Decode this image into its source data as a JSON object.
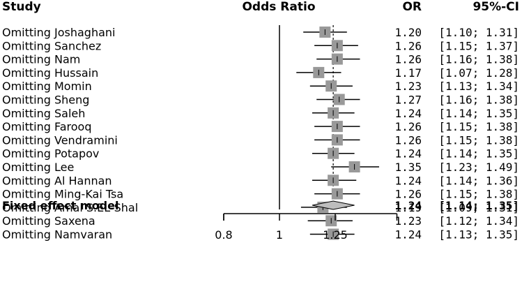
{
  "chart_data": {
    "type": "forest",
    "headers": {
      "study": "Study",
      "effect": "Odds Ratio",
      "or": "OR",
      "ci": "95%-CI"
    },
    "studies": [
      {
        "label": "Omitting Joshaghani",
        "or": 1.2,
        "lo": 1.1,
        "hi": 1.31,
        "or_text": "1.20",
        "ci_text": "[1.10; 1.31]"
      },
      {
        "label": "Omitting Sanchez",
        "or": 1.26,
        "lo": 1.15,
        "hi": 1.37,
        "or_text": "1.26",
        "ci_text": "[1.15; 1.37]"
      },
      {
        "label": "Omitting Nam",
        "or": 1.26,
        "lo": 1.16,
        "hi": 1.38,
        "or_text": "1.26",
        "ci_text": "[1.16; 1.38]"
      },
      {
        "label": "Omitting Hussain",
        "or": 1.17,
        "lo": 1.07,
        "hi": 1.28,
        "or_text": "1.17",
        "ci_text": "[1.07; 1.28]"
      },
      {
        "label": "Omitting Momin",
        "or": 1.23,
        "lo": 1.13,
        "hi": 1.34,
        "or_text": "1.23",
        "ci_text": "[1.13; 1.34]"
      },
      {
        "label": "Omitting Sheng",
        "or": 1.27,
        "lo": 1.16,
        "hi": 1.38,
        "or_text": "1.27",
        "ci_text": "[1.16; 1.38]"
      },
      {
        "label": "Omitting Saleh",
        "or": 1.24,
        "lo": 1.14,
        "hi": 1.35,
        "or_text": "1.24",
        "ci_text": "[1.14; 1.35]"
      },
      {
        "label": "Omitting Farooq",
        "or": 1.26,
        "lo": 1.15,
        "hi": 1.38,
        "or_text": "1.26",
        "ci_text": "[1.15; 1.38]"
      },
      {
        "label": "Omitting Vendramini",
        "or": 1.26,
        "lo": 1.15,
        "hi": 1.38,
        "or_text": "1.26",
        "ci_text": "[1.15; 1.38]"
      },
      {
        "label": "Omitting Potapov",
        "or": 1.24,
        "lo": 1.14,
        "hi": 1.35,
        "or_text": "1.24",
        "ci_text": "[1.14; 1.35]"
      },
      {
        "label": "Omitting Lee",
        "or": 1.35,
        "lo": 1.23,
        "hi": 1.49,
        "or_text": "1.35",
        "ci_text": "[1.23; 1.49]"
      },
      {
        "label": "Omitting Al Hannan",
        "or": 1.24,
        "lo": 1.14,
        "hi": 1.36,
        "or_text": "1.24",
        "ci_text": "[1.14; 1.36]"
      },
      {
        "label": "Omitting Ming-Kai Tsa",
        "or": 1.26,
        "lo": 1.15,
        "hi": 1.38,
        "or_text": "1.26",
        "ci_text": "[1.15; 1.38]"
      },
      {
        "label": "Omitting Amal S.EL-Shal",
        "or": 1.19,
        "lo": 1.09,
        "hi": 1.31,
        "or_text": "1.19",
        "ci_text": "[1.09; 1.31]"
      },
      {
        "label": "Omitting Saxena",
        "or": 1.23,
        "lo": 1.12,
        "hi": 1.34,
        "or_text": "1.23",
        "ci_text": "[1.12; 1.34]"
      },
      {
        "label": "Omitting Namvaran",
        "or": 1.24,
        "lo": 1.13,
        "hi": 1.35,
        "or_text": "1.24",
        "ci_text": "[1.13; 1.35]"
      }
    ],
    "summary": {
      "label": "Fixed effect model",
      "or": 1.24,
      "lo": 1.14,
      "hi": 1.35,
      "or_text": "1.24",
      "ci_text": "[1.14; 1.35]"
    },
    "x_scale": "log",
    "xlim": [
      0.8,
      1.6
    ],
    "null_line": 1,
    "x_ticks": [
      0.8,
      1,
      1.25
    ],
    "x_tick_labels": [
      "0.8",
      "1",
      "1.25"
    ],
    "colors": {
      "square": "#999999",
      "line": "#000000",
      "diamond": "#bdbdbd"
    }
  }
}
